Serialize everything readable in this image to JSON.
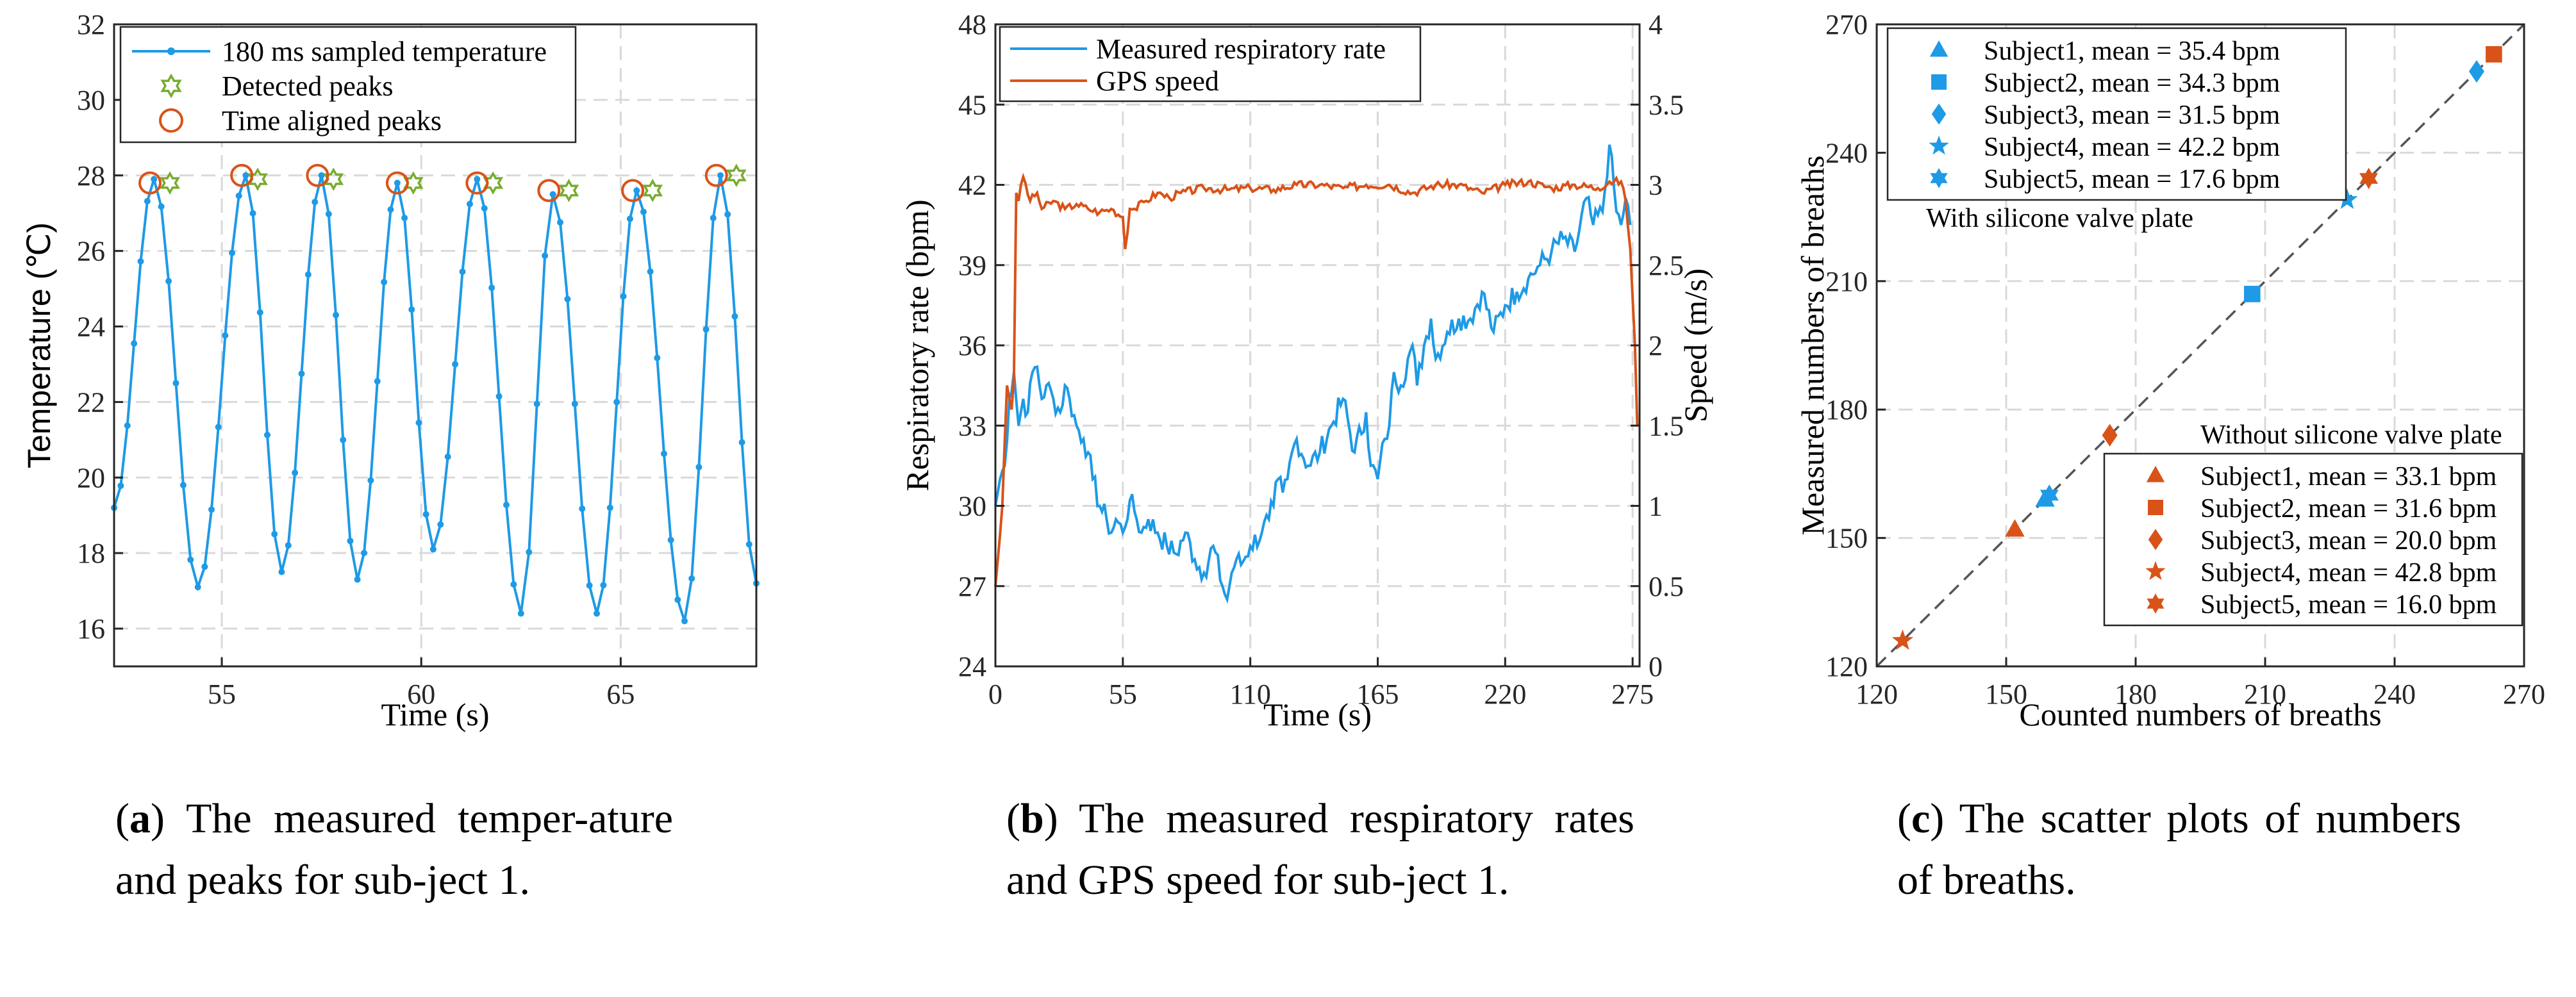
{
  "colors": {
    "blue": "#1e9ae6",
    "orange": "#d95319",
    "green": "#77ac30",
    "grid": "#d9d9d9",
    "dash": "#555555"
  },
  "chart_data": [
    {
      "id": "a",
      "type": "line",
      "title": "",
      "xlabel": "Time (s)",
      "ylabel": "Temperature (℃)",
      "xlim": [
        52.3,
        68.4
      ],
      "ylim": [
        15,
        32
      ],
      "xticks": [
        55,
        60,
        65
      ],
      "yticks": [
        16,
        18,
        20,
        22,
        24,
        26,
        28,
        30,
        32
      ],
      "legend": [
        "180 ms sampled temperature",
        "Detected peaks",
        "Time aligned peaks"
      ],
      "series": [
        {
          "name": "180 ms sampled temperature",
          "marker": "dot",
          "cycles": [
            {
              "start": 52.3,
              "peak_t": 53.3,
              "peak_v": 27.9,
              "trough_t": 54.4,
              "trough_v": 17.1
            },
            {
              "peak_t": 55.6,
              "peak_v": 28.0,
              "trough_t": 56.5,
              "trough_v": 17.5
            },
            {
              "peak_t": 57.5,
              "peak_v": 28.0,
              "trough_t": 58.4,
              "trough_v": 17.3
            },
            {
              "peak_t": 59.4,
              "peak_v": 27.8,
              "trough_t": 60.3,
              "trough_v": 18.1
            },
            {
              "peak_t": 61.4,
              "peak_v": 27.9,
              "trough_t": 62.5,
              "trough_v": 16.4
            },
            {
              "peak_t": 63.3,
              "peak_v": 27.5,
              "trough_t": 64.4,
              "trough_v": 16.4
            },
            {
              "peak_t": 65.4,
              "peak_v": 27.6,
              "trough_t": 66.6,
              "trough_v": 16.2
            },
            {
              "peak_t": 67.5,
              "peak_v": 28.0,
              "trough_t": 68.4,
              "trough_v": 17.2
            }
          ]
        },
        {
          "name": "Detected peaks",
          "marker": "hexagram",
          "x": [
            53.7,
            55.9,
            57.8,
            59.8,
            61.8,
            63.7,
            65.8,
            67.9
          ],
          "y": [
            27.8,
            27.9,
            27.9,
            27.8,
            27.8,
            27.6,
            27.6,
            28.0
          ]
        },
        {
          "name": "Time aligned peaks",
          "marker": "circle",
          "x": [
            53.2,
            55.5,
            57.4,
            59.4,
            61.4,
            63.2,
            65.3,
            67.4
          ],
          "y": [
            27.8,
            28.0,
            28.0,
            27.8,
            27.8,
            27.6,
            27.6,
            28.0
          ]
        }
      ],
      "caption_label": "a",
      "caption_text": "The measured temper-ature and peaks for sub-ject 1."
    },
    {
      "id": "b",
      "type": "line",
      "xlabel": "Time (s)",
      "ylabel": "Respiratory rate (bpm)",
      "ylabel_right": "Speed (m/s)",
      "xlim": [
        0,
        278
      ],
      "ylim": [
        24,
        48
      ],
      "ylim_right": [
        0,
        4
      ],
      "xticks": [
        0,
        55,
        110,
        165,
        220,
        275
      ],
      "yticks": [
        24,
        27,
        30,
        33,
        36,
        39,
        42,
        45,
        48
      ],
      "yticks_right": [
        0,
        0.5,
        1,
        1.5,
        2,
        2.5,
        3,
        3.5,
        4
      ],
      "legend": [
        "Measured respiratory rate",
        "GPS speed"
      ],
      "series": [
        {
          "name": "Measured respiratory rate",
          "axis": "left",
          "x": [
            0,
            2,
            4,
            6,
            8,
            10,
            12,
            14,
            16,
            18,
            20,
            22,
            25,
            28,
            30,
            32,
            35,
            38,
            40,
            42,
            45,
            48,
            50,
            52,
            55,
            58,
            60,
            63,
            66,
            70,
            74,
            78,
            82,
            86,
            90,
            94,
            98,
            100,
            102,
            104,
            106,
            110,
            115,
            118,
            120,
            122,
            124,
            126,
            128,
            130,
            135,
            140,
            145,
            150,
            155,
            160,
            162,
            165,
            168,
            170,
            172,
            175,
            178,
            180,
            182,
            185,
            188,
            190,
            195,
            200,
            205,
            210,
            215,
            220,
            225,
            230,
            235,
            240,
            245,
            250,
            255,
            258,
            262,
            265,
            268,
            270,
            272,
            274
          ],
          "y": [
            30,
            31,
            31.5,
            34,
            35,
            33,
            34,
            33.5,
            35,
            35.2,
            34,
            34.5,
            34,
            33.5,
            34.5,
            34,
            33,
            32.5,
            32,
            31,
            30,
            29.5,
            29,
            29.5,
            29,
            30.2,
            29.8,
            29,
            29.5,
            29,
            28.5,
            28.2,
            29,
            28,
            27.5,
            28.5,
            27,
            26.5,
            27.5,
            28,
            27.8,
            28.5,
            29,
            29.5,
            30,
            31,
            30.5,
            31,
            32,
            32.5,
            31.5,
            32,
            33,
            34,
            32,
            33.5,
            31.5,
            31,
            32.5,
            33,
            35,
            34.5,
            35.5,
            36,
            34.5,
            36,
            37,
            35.5,
            36.5,
            37,
            37,
            38,
            36.5,
            37.5,
            38,
            38.5,
            39,
            39.5,
            40,
            39.5,
            41.5,
            40.5,
            41,
            43.5,
            41,
            40.5,
            41.5,
            40.5
          ]
        },
        {
          "name": "GPS speed",
          "axis": "right",
          "x": [
            0,
            3,
            5,
            7,
            8,
            9,
            10,
            11,
            12,
            15,
            18,
            20,
            25,
            30,
            35,
            40,
            45,
            50,
            55,
            56,
            58,
            60,
            65,
            70,
            75,
            80,
            90,
            100,
            110,
            120,
            130,
            140,
            150,
            160,
            170,
            180,
            190,
            200,
            210,
            220,
            230,
            240,
            250,
            260,
            265,
            270,
            272,
            274,
            276,
            277
          ],
          "y": [
            0.5,
            1.0,
            1.75,
            1.6,
            1.8,
            2.95,
            2.9,
            3.0,
            3.05,
            2.9,
            2.95,
            2.85,
            2.9,
            2.85,
            2.88,
            2.85,
            2.83,
            2.85,
            2.8,
            2.6,
            2.85,
            2.85,
            2.9,
            2.95,
            2.92,
            2.95,
            2.98,
            2.97,
            2.98,
            2.97,
            3.0,
            3.0,
            2.98,
            3.0,
            3.0,
            2.95,
            3.0,
            3.0,
            2.95,
            3.0,
            3.02,
            2.98,
            3.0,
            2.98,
            3.02,
            3.02,
            2.9,
            2.6,
            2.0,
            1.5
          ]
        }
      ],
      "caption_label": "b",
      "caption_text": "The measured respiratory rates and GPS speed for sub-ject 1."
    },
    {
      "id": "c",
      "type": "scatter",
      "xlabel": "Counted numbers of breaths",
      "ylabel": "Measured numbers of breaths",
      "xlim": [
        120,
        270
      ],
      "ylim": [
        120,
        270
      ],
      "xticks": [
        120,
        150,
        180,
        210,
        240,
        270
      ],
      "yticks": [
        120,
        150,
        180,
        210,
        240,
        270
      ],
      "reference_line": [
        [
          120,
          120
        ],
        [
          270,
          270
        ]
      ],
      "groups": [
        {
          "title": "With silicone valve plate",
          "color": "blue",
          "points": [
            {
              "name": "Subject1, mean = 35.4 bpm",
              "marker": "triangle",
              "x": 159,
              "y": 159
            },
            {
              "name": "Subject2, mean = 34.3 bpm",
              "marker": "square",
              "x": 207,
              "y": 207
            },
            {
              "name": "Subject3, mean = 31.5 bpm",
              "marker": "diamond",
              "x": 259,
              "y": 259
            },
            {
              "name": "Subject4, mean = 42.2 bpm",
              "marker": "pentagram",
              "x": 229,
              "y": 229
            },
            {
              "name": "Subject5, mean = 17.6 bpm",
              "marker": "hexagram",
              "x": 160,
              "y": 160
            }
          ]
        },
        {
          "title": "Without silicone valve plate",
          "color": "orange",
          "points": [
            {
              "name": "Subject1, mean = 33.1 bpm",
              "marker": "triangle",
              "x": 152,
              "y": 152
            },
            {
              "name": "Subject2, mean = 31.6 bpm",
              "marker": "square",
              "x": 263,
              "y": 263
            },
            {
              "name": "Subject3, mean = 20.0 bpm",
              "marker": "diamond",
              "x": 174,
              "y": 174
            },
            {
              "name": "Subject4, mean = 42.8 bpm",
              "marker": "pentagram",
              "x": 126,
              "y": 126
            },
            {
              "name": "Subject5, mean = 16.0 bpm",
              "marker": "hexagram",
              "x": 234,
              "y": 234
            }
          ]
        }
      ],
      "caption_label": "c",
      "caption_text": "The scatter plots of numbers of breaths."
    }
  ]
}
